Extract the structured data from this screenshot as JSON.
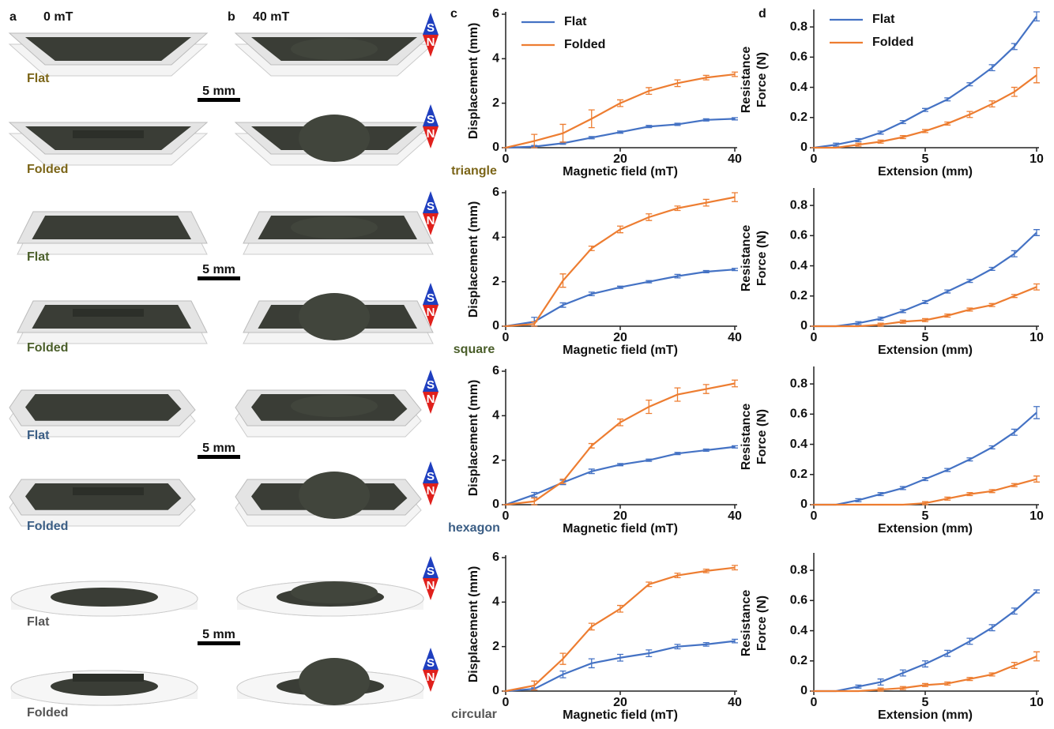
{
  "photos": {
    "panel_a": "a",
    "field_a": "0 mT",
    "panel_b": "b",
    "field_b": "40 mT",
    "magnet": [
      "S",
      "N"
    ],
    "rows": [
      {
        "shape": "triangle",
        "color": "#7b6518",
        "flat": "Flat",
        "folded": "Folded",
        "scale": "5 mm"
      },
      {
        "shape": "square",
        "color": "#4a5e2a",
        "flat": "Flat",
        "folded": "Folded",
        "scale": "5 mm"
      },
      {
        "shape": "hexagon",
        "color": "#3b5e85",
        "flat": "Flat",
        "folded": "Folded",
        "scale": "5 mm"
      },
      {
        "shape": "circular",
        "color": "#555555",
        "flat": "Flat",
        "folded": "Folded",
        "scale": "5 mm"
      }
    ]
  },
  "chart_data": [
    {
      "type": "line",
      "panel": "c",
      "xlabel": "Magnetic field (mT)",
      "ylabel": "Displacement (mm)",
      "x": [
        0,
        5,
        10,
        15,
        20,
        25,
        30,
        35,
        40
      ],
      "xlim": [
        0,
        40
      ],
      "xticks": [
        0,
        20,
        40
      ],
      "ylim": [
        0,
        6
      ],
      "yticks": [
        0,
        2,
        4,
        6
      ],
      "legend": "top-left",
      "series": [
        {
          "name": "Flat",
          "color": "#4472c4",
          "values": [
            0,
            0.05,
            0.2,
            0.45,
            0.7,
            0.95,
            1.05,
            1.25,
            1.3
          ],
          "errors": [
            0,
            0.05,
            0.05,
            0.05,
            0.05,
            0.05,
            0.05,
            0.05,
            0.05
          ]
        },
        {
          "name": "Folded",
          "color": "#ed7d31",
          "values": [
            0,
            0.3,
            0.65,
            1.3,
            2.0,
            2.55,
            2.9,
            3.15,
            3.3
          ],
          "errors": [
            0,
            0.3,
            0.4,
            0.4,
            0.15,
            0.15,
            0.15,
            0.1,
            0.1
          ]
        }
      ]
    },
    {
      "type": "line",
      "panel": "d",
      "xlabel": "Extension (mm)",
      "ylabel": [
        "Resistance",
        "Force (N)"
      ],
      "x": [
        0,
        1,
        2,
        3,
        4,
        5,
        6,
        7,
        8,
        9,
        10
      ],
      "xlim": [
        0,
        10
      ],
      "xticks": [
        0,
        5,
        10
      ],
      "ylim": [
        0,
        0.9
      ],
      "yticks": [
        0,
        0.2,
        0.4,
        0.6,
        0.8
      ],
      "legend": "top-left",
      "series": [
        {
          "name": "Flat",
          "color": "#4472c4",
          "values": [
            0,
            0.02,
            0.05,
            0.1,
            0.17,
            0.25,
            0.32,
            0.42,
            0.53,
            0.67,
            0.87
          ],
          "errors": [
            0,
            0.01,
            0.01,
            0.01,
            0.01,
            0.01,
            0.01,
            0.01,
            0.02,
            0.02,
            0.03
          ]
        },
        {
          "name": "Folded",
          "color": "#ed7d31",
          "values": [
            0,
            0,
            0.02,
            0.04,
            0.07,
            0.11,
            0.16,
            0.22,
            0.29,
            0.37,
            0.48
          ],
          "errors": [
            0,
            0,
            0.01,
            0.01,
            0.01,
            0.01,
            0.01,
            0.02,
            0.02,
            0.03,
            0.05
          ]
        }
      ]
    },
    {
      "type": "line",
      "xlabel": "Magnetic field (mT)",
      "ylabel": "Displacement (mm)",
      "x": [
        0,
        5,
        10,
        15,
        20,
        25,
        30,
        35,
        40
      ],
      "xlim": [
        0,
        40
      ],
      "xticks": [
        0,
        20,
        40
      ],
      "ylim": [
        0,
        6
      ],
      "yticks": [
        0,
        2,
        4,
        6
      ],
      "series": [
        {
          "color": "#4472c4",
          "values": [
            0,
            0.2,
            0.95,
            1.45,
            1.75,
            2.0,
            2.25,
            2.45,
            2.55
          ],
          "errors": [
            0,
            0.2,
            0.1,
            0.08,
            0.05,
            0.05,
            0.08,
            0.05,
            0.05
          ]
        },
        {
          "color": "#ed7d31",
          "values": [
            0,
            0.1,
            2.05,
            3.5,
            4.35,
            4.9,
            5.3,
            5.55,
            5.8
          ],
          "errors": [
            0,
            0.1,
            0.3,
            0.1,
            0.15,
            0.15,
            0.1,
            0.15,
            0.2
          ]
        }
      ]
    },
    {
      "type": "line",
      "xlabel": "Extension (mm)",
      "ylabel": [
        "Resistance",
        "Force (N)"
      ],
      "x": [
        0,
        1,
        2,
        3,
        4,
        5,
        6,
        7,
        8,
        9,
        10
      ],
      "xlim": [
        0,
        10
      ],
      "xticks": [
        0,
        5,
        10
      ],
      "ylim": [
        0,
        0.9
      ],
      "yticks": [
        0,
        0.2,
        0.4,
        0.6,
        0.8
      ],
      "series": [
        {
          "color": "#4472c4",
          "values": [
            0,
            0,
            0.02,
            0.05,
            0.1,
            0.16,
            0.23,
            0.3,
            0.38,
            0.48,
            0.62
          ],
          "errors": [
            0,
            0,
            0.01,
            0.01,
            0.01,
            0.01,
            0.01,
            0.01,
            0.01,
            0.02,
            0.02
          ]
        },
        {
          "color": "#ed7d31",
          "values": [
            0,
            0,
            0,
            0.01,
            0.03,
            0.04,
            0.07,
            0.11,
            0.14,
            0.2,
            0.26
          ],
          "errors": [
            0,
            0,
            0,
            0.01,
            0.01,
            0.01,
            0.01,
            0.01,
            0.01,
            0.01,
            0.02
          ]
        }
      ]
    },
    {
      "type": "line",
      "xlabel": "Magnetic field (mT)",
      "ylabel": "Displacement (mm)",
      "x": [
        0,
        5,
        10,
        15,
        20,
        25,
        30,
        35,
        40
      ],
      "xlim": [
        0,
        40
      ],
      "xticks": [
        0,
        20,
        40
      ],
      "ylim": [
        0,
        6
      ],
      "yticks": [
        0,
        2,
        4,
        6
      ],
      "series": [
        {
          "color": "#4472c4",
          "values": [
            0,
            0.45,
            1.0,
            1.5,
            1.8,
            2.0,
            2.3,
            2.45,
            2.6
          ],
          "errors": [
            0,
            0.1,
            0.1,
            0.1,
            0.05,
            0.05,
            0.05,
            0.05,
            0.05
          ]
        },
        {
          "color": "#ed7d31",
          "values": [
            0,
            0.15,
            1.05,
            2.65,
            3.7,
            4.4,
            4.95,
            5.2,
            5.45
          ],
          "errors": [
            0,
            0.15,
            0.1,
            0.1,
            0.15,
            0.3,
            0.3,
            0.2,
            0.15
          ]
        }
      ]
    },
    {
      "type": "line",
      "xlabel": "Extension (mm)",
      "ylabel": [
        "Resistance",
        "Force (N)"
      ],
      "x": [
        0,
        1,
        2,
        3,
        4,
        5,
        6,
        7,
        8,
        9,
        10
      ],
      "xlim": [
        0,
        10
      ],
      "xticks": [
        0,
        5,
        10
      ],
      "ylim": [
        0,
        0.9
      ],
      "yticks": [
        0,
        0.2,
        0.4,
        0.6,
        0.8
      ],
      "series": [
        {
          "color": "#4472c4",
          "values": [
            0,
            0,
            0.03,
            0.07,
            0.11,
            0.17,
            0.23,
            0.3,
            0.38,
            0.48,
            0.61
          ],
          "errors": [
            0,
            0,
            0.01,
            0.01,
            0.01,
            0.01,
            0.01,
            0.01,
            0.01,
            0.02,
            0.04
          ]
        },
        {
          "color": "#ed7d31",
          "values": [
            0,
            0,
            0,
            0,
            0,
            0.01,
            0.04,
            0.07,
            0.09,
            0.13,
            0.17
          ],
          "errors": [
            0,
            0,
            0,
            0,
            0,
            0.01,
            0.01,
            0.01,
            0.01,
            0.01,
            0.02
          ]
        }
      ]
    },
    {
      "type": "line",
      "xlabel": "Magnetic field (mT)",
      "ylabel": "Displacement (mm)",
      "x": [
        0,
        5,
        10,
        15,
        20,
        25,
        30,
        35,
        40
      ],
      "xlim": [
        0,
        40
      ],
      "xticks": [
        0,
        20,
        40
      ],
      "ylim": [
        0,
        6
      ],
      "yticks": [
        0,
        2,
        4,
        6
      ],
      "series": [
        {
          "color": "#4472c4",
          "values": [
            0,
            0.1,
            0.75,
            1.25,
            1.5,
            1.7,
            2.0,
            2.1,
            2.25
          ],
          "errors": [
            0,
            0.05,
            0.15,
            0.2,
            0.15,
            0.15,
            0.1,
            0.08,
            0.08
          ]
        },
        {
          "color": "#ed7d31",
          "values": [
            0,
            0.25,
            1.45,
            2.9,
            3.7,
            4.8,
            5.2,
            5.4,
            5.55
          ],
          "errors": [
            0,
            0.2,
            0.25,
            0.15,
            0.15,
            0.1,
            0.1,
            0.08,
            0.1
          ]
        }
      ]
    },
    {
      "type": "line",
      "xlabel": "Extension (mm)",
      "ylabel": [
        "Resistance",
        "Force (N)"
      ],
      "x": [
        0,
        1,
        2,
        3,
        4,
        5,
        6,
        7,
        8,
        9,
        10
      ],
      "xlim": [
        0,
        10
      ],
      "xticks": [
        0,
        5,
        10
      ],
      "ylim": [
        0,
        0.9
      ],
      "yticks": [
        0,
        0.2,
        0.4,
        0.6,
        0.8
      ],
      "series": [
        {
          "color": "#4472c4",
          "values": [
            0,
            0,
            0.03,
            0.06,
            0.12,
            0.18,
            0.25,
            0.33,
            0.42,
            0.53,
            0.66
          ],
          "errors": [
            0,
            0,
            0.01,
            0.02,
            0.02,
            0.02,
            0.02,
            0.02,
            0.02,
            0.02,
            0.01
          ]
        },
        {
          "color": "#ed7d31",
          "values": [
            0,
            0,
            0,
            0.01,
            0.02,
            0.04,
            0.05,
            0.08,
            0.11,
            0.17,
            0.23
          ],
          "errors": [
            0,
            0,
            0,
            0.01,
            0.01,
            0.01,
            0.01,
            0.01,
            0.01,
            0.02,
            0.03
          ]
        }
      ]
    }
  ]
}
